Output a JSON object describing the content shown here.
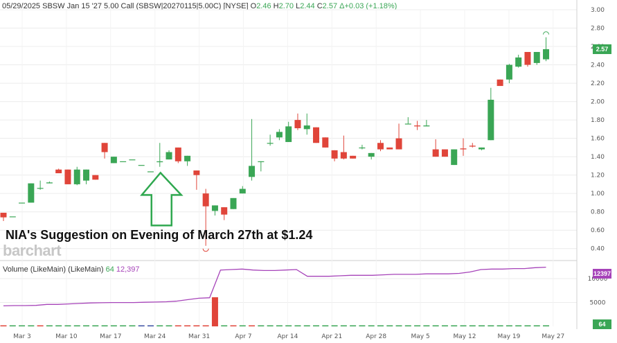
{
  "header": {
    "date": "05/29/2025",
    "instrument": "SBSW Jan 15 '27 5.00 Call (SBSW|20270115|5.00C) [NYSE]",
    "o_label": "O",
    "o_value": "2.46",
    "h_label": "H",
    "h_value": "2.70",
    "l_label": "L",
    "l_value": "2.44",
    "c_label": "C",
    "c_value": "2.57",
    "change": "Δ+0.03 (+1.18%)"
  },
  "annotation": "NIA's Suggestion on Evening of March 27th at $1.24",
  "watermark": "barchart",
  "last_price_badge": "2.57",
  "volume": {
    "title": "Volume (LikeMain)",
    "study": "(LikeMain)",
    "value1": "64",
    "value2": "12,397",
    "badge_ma": "12397",
    "badge_vol": "64"
  },
  "colors": {
    "up": "#3aa655",
    "down": "#e0453a",
    "ma": "#a643b9",
    "arrow": "#2fa84f",
    "badge": "#3aa655"
  },
  "chart_data": [
    {
      "type": "candlestick",
      "title": "",
      "ylim": [
        0.3,
        3.0
      ],
      "yticks": [
        "3.00",
        "2.80",
        "2.60",
        "2.40",
        "2.20",
        "2.00",
        "1.80",
        "1.60",
        "1.40",
        "1.20",
        "1.00",
        "0.80",
        "0.60",
        "0.40"
      ],
      "xtick_labels": [
        "Mar 3",
        "Mar 10",
        "Mar 17",
        "Mar 24",
        "Mar 31",
        "Apr 7",
        "Apr 14",
        "Apr 21",
        "Apr 28",
        "May 5",
        "May 12",
        "May 19",
        "May 27"
      ],
      "candles": [
        {
          "o": 0.79,
          "h": 0.79,
          "l": 0.7,
          "c": 0.74
        },
        {
          "o": 0.75,
          "h": 0.75,
          "l": 0.75,
          "c": 0.75
        },
        {
          "o": 0.9,
          "h": 0.9,
          "l": 0.9,
          "c": 0.9
        },
        {
          "o": 0.9,
          "h": 1.11,
          "l": 0.9,
          "c": 1.11
        },
        {
          "o": 1.06,
          "h": 1.14,
          "l": 1.04,
          "c": 1.06
        },
        {
          "o": 1.11,
          "h": 1.13,
          "l": 1.11,
          "c": 1.12
        },
        {
          "o": 1.26,
          "h": 1.27,
          "l": 1.22,
          "c": 1.22
        },
        {
          "o": 1.26,
          "h": 1.26,
          "l": 1.1,
          "c": 1.1
        },
        {
          "o": 1.1,
          "h": 1.29,
          "l": 1.09,
          "c": 1.26
        },
        {
          "o": 1.14,
          "h": 1.26,
          "l": 1.1,
          "c": 1.26
        },
        {
          "o": 1.2,
          "h": 1.2,
          "l": 1.15,
          "c": 1.15
        },
        {
          "o": 1.55,
          "h": 1.55,
          "l": 1.38,
          "c": 1.45
        },
        {
          "o": 1.33,
          "h": 1.4,
          "l": 1.33,
          "c": 1.4
        },
        {
          "o": 1.35,
          "h": 1.35,
          "l": 1.35,
          "c": 1.35
        },
        {
          "o": 1.37,
          "h": 1.37,
          "l": 1.37,
          "c": 1.37
        },
        {
          "o": 1.31,
          "h": 1.31,
          "l": 1.31,
          "c": 1.31
        },
        {
          "o": 1.24,
          "h": 1.24,
          "l": 1.24,
          "c": 1.24
        },
        {
          "o": 1.34,
          "h": 1.55,
          "l": 1.29,
          "c": 1.35
        },
        {
          "o": 1.37,
          "h": 1.47,
          "l": 1.37,
          "c": 1.45
        },
        {
          "o": 1.5,
          "h": 1.5,
          "l": 1.33,
          "c": 1.35
        },
        {
          "o": 1.35,
          "h": 1.41,
          "l": 1.3,
          "c": 1.41
        },
        {
          "o": 1.25,
          "h": 1.25,
          "l": 1.04,
          "c": 1.2
        },
        {
          "o": 1.0,
          "h": 1.05,
          "l": 0.43,
          "c": 0.86
        },
        {
          "o": 0.81,
          "h": 0.87,
          "l": 0.76,
          "c": 0.87
        },
        {
          "o": 0.85,
          "h": 0.85,
          "l": 0.71,
          "c": 0.77
        },
        {
          "o": 0.83,
          "h": 0.95,
          "l": 0.83,
          "c": 0.95
        },
        {
          "o": 1.0,
          "h": 1.08,
          "l": 1.0,
          "c": 1.05
        },
        {
          "o": 1.18,
          "h": 1.81,
          "l": 1.14,
          "c": 1.3
        },
        {
          "o": 1.35,
          "h": 1.35,
          "l": 1.24,
          "c": 1.35
        },
        {
          "o": 1.55,
          "h": 1.64,
          "l": 1.52,
          "c": 1.55
        },
        {
          "o": 1.61,
          "h": 1.7,
          "l": 1.58,
          "c": 1.67
        },
        {
          "o": 1.56,
          "h": 1.78,
          "l": 1.56,
          "c": 1.73
        },
        {
          "o": 1.8,
          "h": 1.87,
          "l": 1.69,
          "c": 1.71
        },
        {
          "o": 1.7,
          "h": 1.87,
          "l": 1.64,
          "c": 1.74
        },
        {
          "o": 1.72,
          "h": 1.72,
          "l": 1.55,
          "c": 1.55
        },
        {
          "o": 1.61,
          "h": 1.61,
          "l": 1.5,
          "c": 1.5
        },
        {
          "o": 1.47,
          "h": 1.47,
          "l": 1.35,
          "c": 1.38
        },
        {
          "o": 1.45,
          "h": 1.63,
          "l": 1.37,
          "c": 1.38
        },
        {
          "o": 1.41,
          "h": 1.41,
          "l": 1.38,
          "c": 1.38
        },
        {
          "o": 1.5,
          "h": 1.53,
          "l": 1.48,
          "c": 1.5
        },
        {
          "o": 1.4,
          "h": 1.44,
          "l": 1.37,
          "c": 1.44
        },
        {
          "o": 1.55,
          "h": 1.58,
          "l": 1.46,
          "c": 1.48
        },
        {
          "o": 1.5,
          "h": 1.5,
          "l": 1.48,
          "c": 1.48
        },
        {
          "o": 1.6,
          "h": 1.76,
          "l": 1.48,
          "c": 1.48
        },
        {
          "o": 1.76,
          "h": 1.83,
          "l": 1.76,
          "c": 1.76
        },
        {
          "o": 1.74,
          "h": 1.79,
          "l": 1.69,
          "c": 1.73
        },
        {
          "o": 1.73,
          "h": 1.8,
          "l": 1.73,
          "c": 1.74
        },
        {
          "o": 1.48,
          "h": 1.59,
          "l": 1.4,
          "c": 1.4
        },
        {
          "o": 1.48,
          "h": 1.48,
          "l": 1.4,
          "c": 1.4
        },
        {
          "o": 1.31,
          "h": 1.48,
          "l": 1.31,
          "c": 1.48
        },
        {
          "o": 1.49,
          "h": 1.6,
          "l": 1.41,
          "c": 1.48
        },
        {
          "o": 1.52,
          "h": 1.55,
          "l": 1.5,
          "c": 1.51
        },
        {
          "o": 1.48,
          "h": 1.5,
          "l": 1.47,
          "c": 1.5
        },
        {
          "o": 1.58,
          "h": 2.15,
          "l": 1.58,
          "c": 2.02
        },
        {
          "o": 2.24,
          "h": 2.24,
          "l": 2.17,
          "c": 2.17
        },
        {
          "o": 2.24,
          "h": 2.41,
          "l": 2.2,
          "c": 2.4
        },
        {
          "o": 2.38,
          "h": 2.51,
          "l": 2.37,
          "c": 2.48
        },
        {
          "o": 2.54,
          "h": 2.54,
          "l": 2.38,
          "c": 2.4
        },
        {
          "o": 2.42,
          "h": 2.54,
          "l": 2.4,
          "c": 2.54
        },
        {
          "o": 2.46,
          "h": 2.7,
          "l": 2.44,
          "c": 2.57
        }
      ],
      "high_marker": 2.7,
      "low_marker": 0.43
    },
    {
      "type": "bar",
      "title": "Volume",
      "ylim": [
        0,
        13500
      ],
      "yticks": [
        "10000",
        "5000"
      ],
      "volumes": [
        80,
        0,
        0,
        0,
        200,
        0,
        0,
        0,
        0,
        0,
        0,
        0,
        0,
        0,
        0,
        0,
        0,
        0,
        0,
        0,
        0,
        0,
        0,
        6100,
        150,
        150,
        0,
        80,
        130,
        0,
        0,
        0,
        0,
        0,
        0,
        0,
        0,
        0,
        0,
        0,
        0,
        0,
        0,
        0,
        0,
        0,
        0,
        0,
        0,
        0,
        0,
        0,
        0,
        0,
        0,
        0,
        0,
        0,
        0,
        64
      ],
      "volume_colors": [
        "r",
        "g",
        "g",
        "g",
        "r",
        "g",
        "g",
        "g",
        "g",
        "g",
        "g",
        "g",
        "g",
        "g",
        "g",
        "b",
        "b",
        "g",
        "g",
        "r",
        "r",
        "r",
        "r",
        "r",
        "g",
        "r",
        "g",
        "r",
        "g",
        "g",
        "g",
        "g",
        "g",
        "g",
        "g",
        "g",
        "g",
        "g",
        "g",
        "g",
        "g",
        "g",
        "g",
        "g",
        "g",
        "g",
        "g",
        "g",
        "g",
        "g",
        "g",
        "g",
        "g",
        "g",
        "g",
        "g",
        "g",
        "g",
        "g",
        "g"
      ],
      "ma": [
        4300,
        4350,
        4350,
        4400,
        4600,
        4600,
        4700,
        4800,
        4900,
        4950,
        5000,
        5000,
        5000,
        5050,
        5100,
        5150,
        5300,
        5600,
        5900,
        6000,
        11800,
        11900,
        12000,
        11800,
        11700,
        11700,
        11800,
        11900,
        10500,
        10500,
        10500,
        10600,
        10700,
        10700,
        10700,
        10800,
        10900,
        10900,
        10900,
        11000,
        11000,
        11000,
        11100,
        11400,
        11900,
        12000,
        12000,
        12100,
        12100,
        12300,
        12397
      ]
    }
  ]
}
